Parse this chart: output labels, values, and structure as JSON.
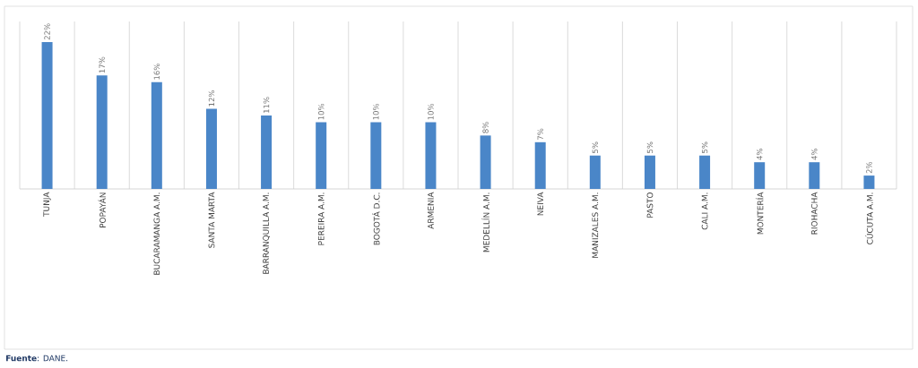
{
  "chart_data": {
    "type": "bar",
    "categories": [
      "TUNJA",
      "POPAYÁN",
      "BUCARAMANGA A.M.",
      "SANTA MARTA",
      "BARRANQUILLA A.M.",
      "PEREIRA A.M.",
      "BOGOTÁ D.C.",
      "ARMENIA",
      "MEDELLÍN A.M.",
      "NEIVA",
      "MANIZALES A.M.",
      "PASTO",
      "CALI A.M.",
      "MONTERÍA",
      "RIOHACHA",
      "CÚCUTA A.M."
    ],
    "values": [
      22,
      17,
      16,
      12,
      11,
      10,
      10,
      10,
      8,
      7,
      5,
      5,
      5,
      4,
      4,
      2
    ],
    "value_labels": [
      "22%",
      "17%",
      "16%",
      "12%",
      "11%",
      "10%",
      "10%",
      "10%",
      "8%",
      "7%",
      "5%",
      "5%",
      "5%",
      "4%",
      "4%",
      "2%"
    ],
    "color": "#4a86c8",
    "grid": "x",
    "annotations": [
      "**Fuente**: DANE."
    ]
  }
}
